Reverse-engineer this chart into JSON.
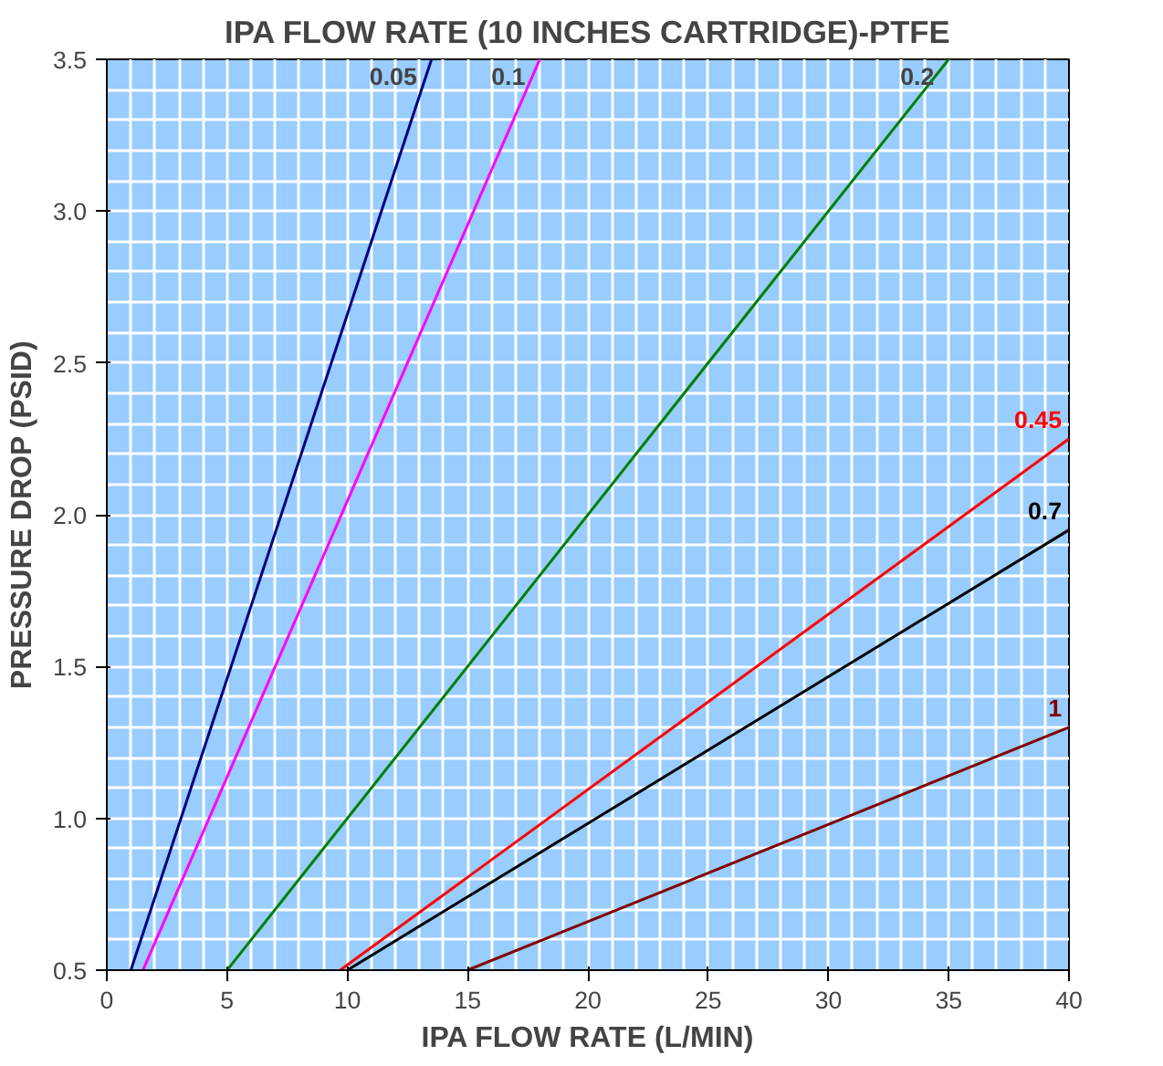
{
  "chart_data": {
    "type": "line",
    "title": "IPA FLOW RATE (10 INCHES CARTRIDGE)-PTFE",
    "xlabel": "IPA FLOW RATE (L/MIN)",
    "ylabel": "PRESSURE DROP (PSID)",
    "xlim": [
      0,
      40
    ],
    "ylim": [
      0.5,
      3.5
    ],
    "xticks": [
      0,
      5,
      10,
      15,
      20,
      25,
      30,
      35,
      40
    ],
    "yticks": [
      {
        "value": 0.5,
        "label": "0.5"
      },
      {
        "value": 1.0,
        "label": "1.0"
      },
      {
        "value": 1.5,
        "label": "1.5"
      },
      {
        "value": 2.0,
        "label": "2.0"
      },
      {
        "value": 2.5,
        "label": "2.5"
      },
      {
        "value": 3.0,
        "label": "3.0"
      },
      {
        "value": 3.5,
        "label": "3.5"
      }
    ],
    "grid": true,
    "marker": "none",
    "line_style": "solid",
    "series": [
      {
        "name": "0.05",
        "color": "#000080",
        "x": [
          1.0,
          13.5
        ],
        "values": [
          0.5,
          3.5
        ]
      },
      {
        "name": "0.1",
        "color": "#ff00ff",
        "x": [
          1.5,
          18.0
        ],
        "values": [
          0.5,
          3.5
        ]
      },
      {
        "name": "0.2",
        "color": "#008000",
        "x": [
          5.0,
          35.0
        ],
        "values": [
          0.5,
          3.5
        ]
      },
      {
        "name": "0.45",
        "color": "#ff0000",
        "x": [
          9.7,
          40.0
        ],
        "values": [
          0.5,
          2.25
        ]
      },
      {
        "name": "0.7",
        "color": "#000000",
        "x": [
          10.0,
          40.0
        ],
        "values": [
          0.5,
          1.95
        ]
      },
      {
        "name": "1",
        "color": "#800000",
        "x": [
          15.0,
          40.0
        ],
        "values": [
          0.5,
          1.3
        ]
      }
    ]
  }
}
